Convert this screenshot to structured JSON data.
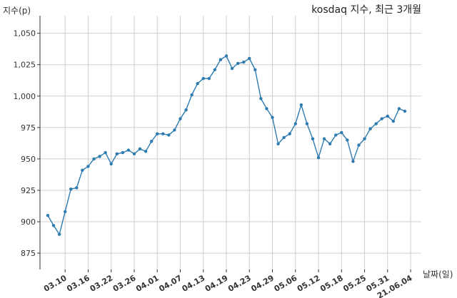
{
  "chart_data": {
    "type": "line",
    "title": "kosdaq 지수, 최근 3개월",
    "ylabel": "지수(p)",
    "xlabel": "날짜(일)",
    "ylim": [
      862,
      1064
    ],
    "y_ticks": [
      875,
      900,
      925,
      950,
      975,
      1000,
      1025,
      1050
    ],
    "y_tick_labels": [
      "875",
      "900",
      "925",
      "950",
      "975",
      "1,000",
      "1,025",
      "1,050"
    ],
    "x_tick_labels": [
      "03.10",
      "03.16",
      "03.22",
      "03.26",
      "04.01",
      "04.07",
      "04.13",
      "04.19",
      "04.23",
      "04.29",
      "05.06",
      "05.12",
      "05.18",
      "05.25",
      "05.31",
      "21.06.04"
    ],
    "x_tick_index": [
      3,
      7,
      11,
      15,
      19,
      23,
      27,
      31,
      35,
      39,
      43,
      47,
      51,
      55,
      59,
      63
    ],
    "grid": true,
    "line_color": "#2e7bb0",
    "series": [
      {
        "values": [
          905,
          897,
          890,
          908,
          926,
          927,
          941,
          944,
          950,
          952,
          955,
          946,
          954,
          955,
          957,
          954,
          958,
          956,
          964,
          970,
          970,
          969,
          973,
          982,
          989,
          1001,
          1010,
          1014,
          1014,
          1021,
          1029,
          1032,
          1022,
          1026,
          1027,
          1030,
          1021,
          998,
          990,
          983,
          962,
          967,
          970,
          978,
          993,
          978,
          966,
          951,
          966,
          962,
          969,
          971,
          965,
          948,
          961,
          966,
          974,
          978,
          982,
          984,
          980,
          990,
          988
        ]
      }
    ]
  }
}
